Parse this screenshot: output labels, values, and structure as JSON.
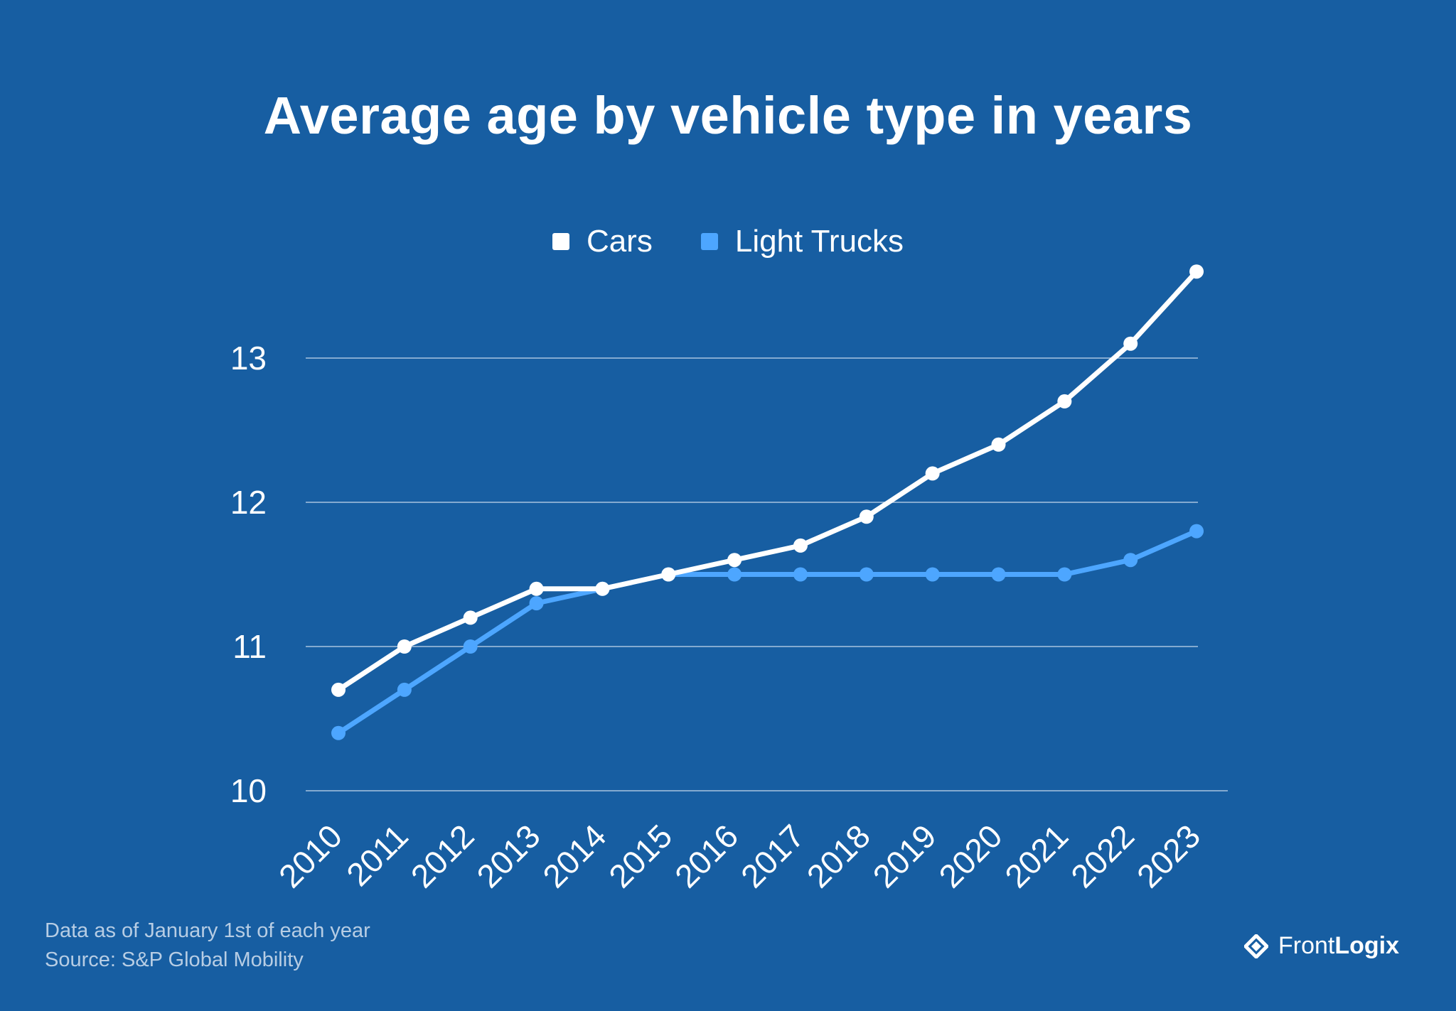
{
  "colors": {
    "background": "#175ea2",
    "cars": "#ffffff",
    "light_trucks": "#4da6ff",
    "grid": "#a9c3df",
    "footnote": "#b7cde4"
  },
  "chart_data": {
    "type": "line",
    "title": "Average age by vehicle type in years",
    "xlabel": "",
    "ylabel": "",
    "categories": [
      "2010",
      "2011",
      "2012",
      "2013",
      "2014",
      "2015",
      "2016",
      "2017",
      "2018",
      "2019",
      "2020",
      "2021",
      "2022",
      "2023"
    ],
    "series": [
      {
        "name": "Cars",
        "values": [
          10.7,
          11.0,
          11.2,
          11.4,
          11.4,
          11.5,
          11.6,
          11.7,
          11.9,
          12.2,
          12.4,
          12.7,
          13.1,
          13.6
        ]
      },
      {
        "name": "Light Trucks",
        "values": [
          10.4,
          10.7,
          11.0,
          11.3,
          11.4,
          11.5,
          11.5,
          11.5,
          11.5,
          11.5,
          11.5,
          11.5,
          11.6,
          11.8
        ]
      }
    ],
    "ylim": [
      10,
      13.6
    ],
    "yticks": [
      "10",
      "11",
      "12",
      "13"
    ],
    "grid": true,
    "legend_position": "top-center"
  },
  "footnote": {
    "line1": "Data as of January 1st of each year",
    "line2": "Source: S&P Global Mobility"
  },
  "brand": {
    "icon": "frontlogix-logo-icon",
    "name_light": "Front",
    "name_bold": "Logix"
  }
}
